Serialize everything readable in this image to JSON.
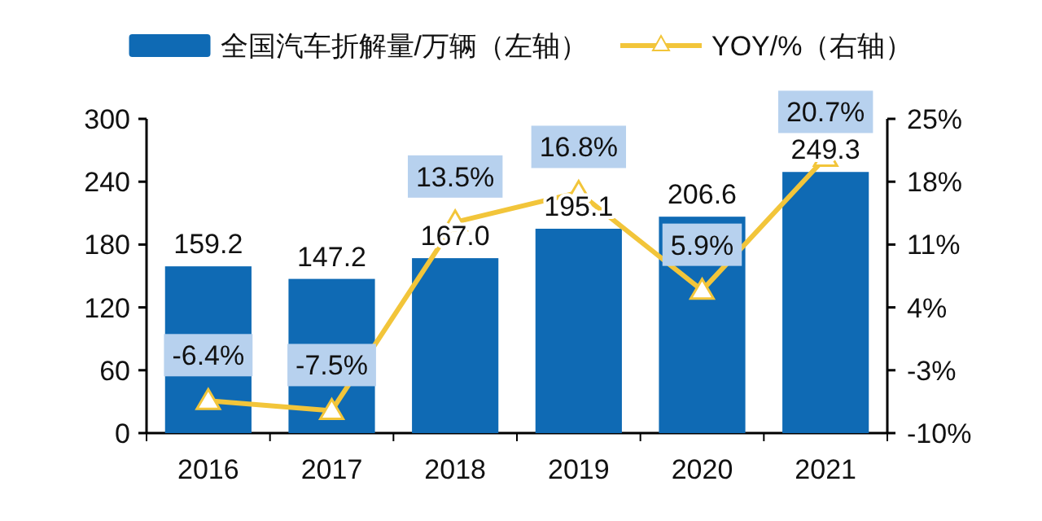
{
  "chart_data": {
    "type": "bar",
    "categories": [
      "2016",
      "2017",
      "2018",
      "2019",
      "2020",
      "2021"
    ],
    "series": [
      {
        "name": "全国汽车折解量/万辆（左轴）",
        "color": "#0f6ab4",
        "values": [
          159.2,
          147.2,
          167.0,
          195.1,
          206.6,
          249.3
        ],
        "value_labels": [
          "159.2",
          "147.2",
          "167.0",
          "195.1",
          "206.6",
          "249.3"
        ]
      },
      {
        "name": "YOY/%（右轴）",
        "type": "line",
        "axis": "y2",
        "color": "#f2c53a",
        "marker": "triangle",
        "values": [
          -6.4,
          -7.5,
          13.5,
          16.8,
          5.9,
          20.7
        ],
        "value_labels": [
          "-6.4%",
          "-7.5%",
          "13.5%",
          "16.8%",
          "5.9%",
          "20.7%"
        ]
      }
    ],
    "ylim": [
      0,
      300
    ],
    "yticks": [
      0,
      60,
      120,
      180,
      240,
      300
    ],
    "y2lim": [
      -10,
      25
    ],
    "y2ticks": [
      {
        "value": -10,
        "label": "-10%"
      },
      {
        "value": -3,
        "label": "-3%"
      },
      {
        "value": 4,
        "label": "4%"
      },
      {
        "value": 11,
        "label": "11%"
      },
      {
        "value": 18,
        "label": "18%"
      },
      {
        "value": 25,
        "label": "25%"
      }
    ],
    "grid": false,
    "legend": "top"
  }
}
